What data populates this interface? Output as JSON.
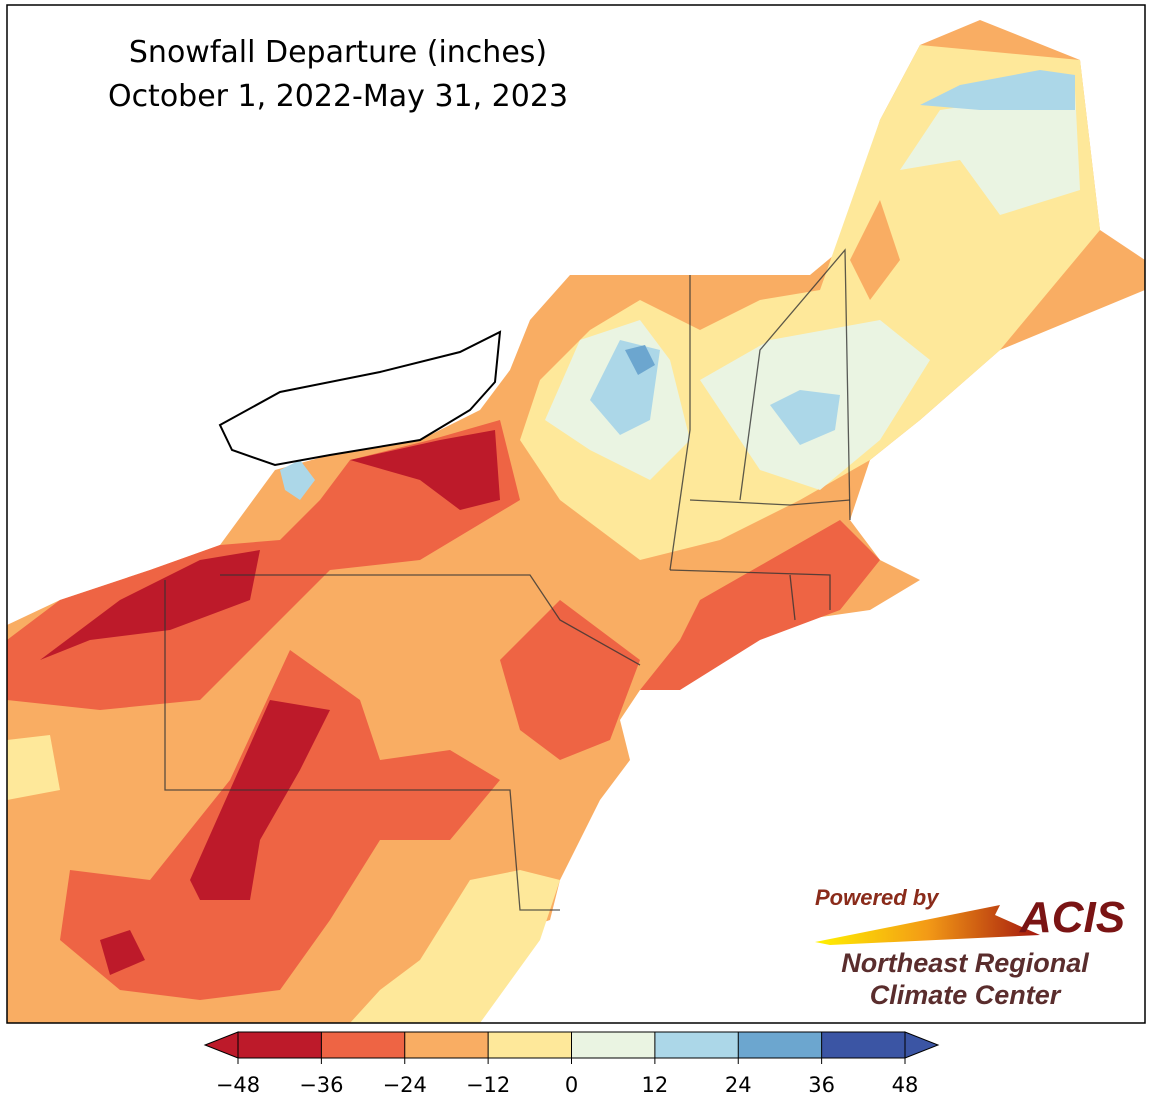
{
  "title": [
    "Snowfall Departure (inches)",
    "October 1, 2022-May 31, 2023"
  ],
  "colorbar": {
    "colors": [
      "#bd1a2a",
      "#ee6444",
      "#f9ad63",
      "#fee89a",
      "#eaf4e2",
      "#acd7e8",
      "#6ca6cf",
      "#3b55a4"
    ],
    "ticks": [
      {
        "value": -48,
        "label": "−48"
      },
      {
        "value": -36,
        "label": "−36"
      },
      {
        "value": -24,
        "label": "−24"
      },
      {
        "value": -12,
        "label": "−12"
      },
      0,
      12,
      24,
      36,
      48
    ]
  },
  "logo": {
    "powered_by": "Powered by",
    "name": "ACIS",
    "org_line1": "Northeast Regional",
    "org_line2": "Climate Center"
  }
}
